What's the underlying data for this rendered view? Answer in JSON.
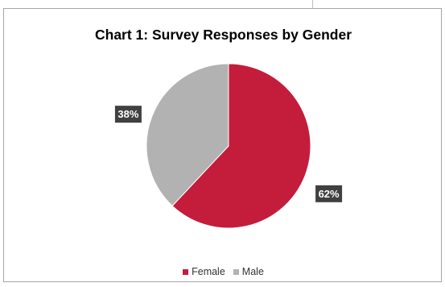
{
  "chart_data": {
    "type": "pie",
    "title": "Chart 1: Survey Responses by Gender",
    "categories": [
      "Female",
      "Male"
    ],
    "values": [
      62,
      38
    ],
    "value_labels": [
      "62%",
      "38%"
    ],
    "colors": [
      "#c31d3b",
      "#b2b2b2"
    ],
    "label_background": "#404040",
    "legend_position": "bottom"
  }
}
